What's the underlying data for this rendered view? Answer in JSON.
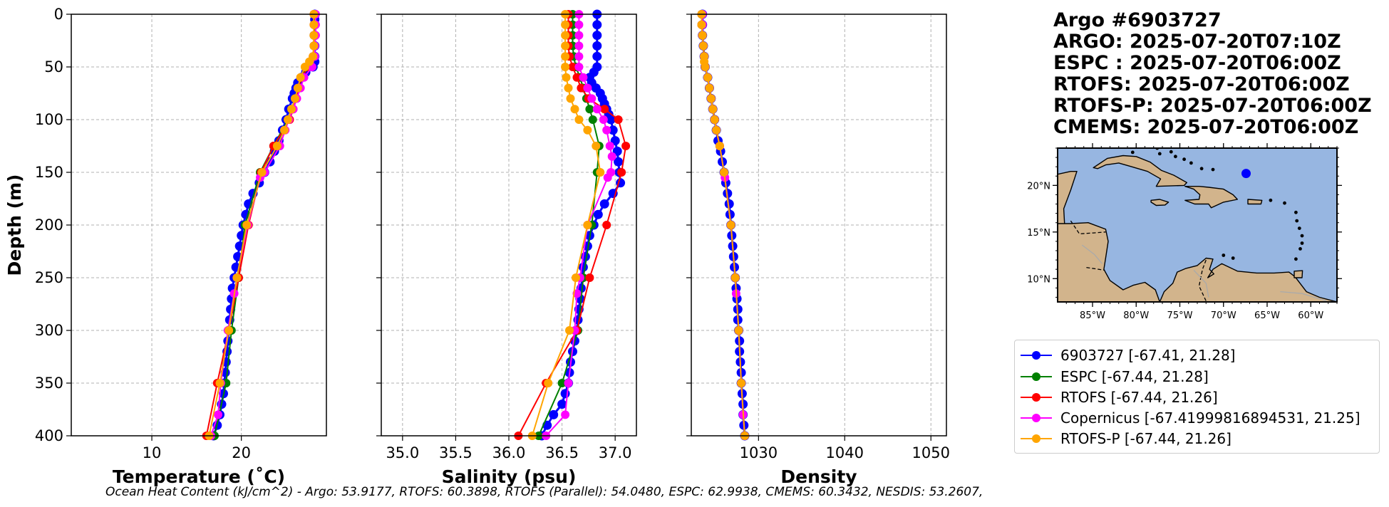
{
  "header": {
    "lines": [
      "Argo #6903727",
      "ARGO: 2025-07-20T07:10Z",
      "ESPC : 2025-07-20T06:00Z",
      "RTOFS: 2025-07-20T06:00Z",
      "RTOFS-P: 2025-07-20T06:00Z",
      "CMEMS: 2025-07-20T06:00Z"
    ]
  },
  "footer": {
    "text": "Ocean Heat Content (kJ/cm^2) - Argo: 53.9177,  RTOFS: 60.3898,  RTOFS (Parallel): 54.0480,  ESPC: 62.9938,  CMEMS: 60.3432,  NESDIS: 53.2607,"
  },
  "colors": {
    "argo": "#0000ff",
    "espc": "#008000",
    "rtofs": "#ff0000",
    "copernicus": "#ff00ff",
    "rtofsp": "#ffa500",
    "ocean": "#97b6e1",
    "land": "#d2b48c",
    "grid": "#b0b0b0"
  },
  "legend": [
    {
      "key": "argo",
      "label": "6903727 [-67.41, 21.28]"
    },
    {
      "key": "espc",
      "label": "ESPC [-67.44, 21.28]"
    },
    {
      "key": "rtofs",
      "label": "RTOFS [-67.44, 21.26]"
    },
    {
      "key": "copernicus",
      "label": "Copernicus [-67.41999816894531, 21.25]"
    },
    {
      "key": "rtofsp",
      "label": "RTOFS-P [-67.44, 21.26]"
    }
  ],
  "map": {
    "lon_range": [
      -89,
      -57
    ],
    "lat_range": [
      7.5,
      24
    ],
    "xticks": [
      -85,
      -80,
      -75,
      -70,
      -65,
      -60
    ],
    "xtick_labels": [
      "85°W",
      "80°W",
      "75°W",
      "70°W",
      "65°W",
      "60°W"
    ],
    "yticks": [
      10,
      15,
      20
    ],
    "ytick_labels": [
      "10°N",
      "15°N",
      "20°N"
    ],
    "float_position": {
      "lon": -67.41,
      "lat": 21.28
    }
  },
  "chart_data": [
    {
      "type": "line",
      "id": "temperature",
      "xlabel": "Temperature (˚C)",
      "ylabel": "Depth (m)",
      "xlim": [
        1,
        29.5
      ],
      "ylim": [
        400,
        0
      ],
      "xticks": [
        10,
        20
      ],
      "yticks": [
        0,
        50,
        100,
        150,
        200,
        250,
        300,
        350,
        400
      ],
      "series": [
        {
          "name": "argo",
          "dense": true,
          "depth": [
            0,
            5,
            10,
            20,
            30,
            40,
            45,
            50,
            55,
            60,
            65,
            70,
            75,
            80,
            90,
            100,
            110,
            120,
            130,
            140,
            150,
            160,
            170,
            180,
            190,
            200,
            210,
            220,
            230,
            240,
            250,
            260,
            270,
            280,
            290,
            300,
            310,
            320,
            330,
            340,
            350,
            360,
            370,
            380,
            390,
            400
          ],
          "values": [
            28.2,
            28.2,
            28.2,
            28.2,
            28.2,
            28.2,
            28.2,
            28.0,
            27.2,
            26.7,
            26.3,
            26.1,
            25.9,
            25.7,
            25.3,
            25.0,
            24.6,
            24.2,
            23.7,
            23.2,
            22.6,
            22.0,
            21.3,
            20.8,
            20.5,
            20.2,
            20.0,
            19.8,
            19.6,
            19.4,
            19.2,
            19.0,
            18.9,
            18.8,
            18.7,
            18.6,
            18.5,
            18.4,
            18.3,
            18.2,
            18.1,
            18.0,
            17.8,
            17.6,
            17.3,
            16.9
          ]
        },
        {
          "name": "espc",
          "depth": [
            0,
            10,
            20,
            30,
            40,
            50,
            60,
            70,
            80,
            90,
            100,
            125,
            150,
            200,
            250,
            300,
            350,
            400
          ],
          "values": [
            28.2,
            28.2,
            28.1,
            28.1,
            28.1,
            27.4,
            26.7,
            26.4,
            26.0,
            25.6,
            25.2,
            23.6,
            22.1,
            20.4,
            19.7,
            18.9,
            18.3,
            17.0
          ]
        },
        {
          "name": "rtofs",
          "depth": [
            0,
            10,
            20,
            30,
            40,
            50,
            60,
            70,
            80,
            90,
            100,
            125,
            150,
            200,
            250,
            300,
            350,
            400
          ],
          "values": [
            28.1,
            28.1,
            28.1,
            28.1,
            28.0,
            27.5,
            26.7,
            26.4,
            26.1,
            25.8,
            25.4,
            23.6,
            22.2,
            20.8,
            19.7,
            18.6,
            17.3,
            16.1
          ]
        },
        {
          "name": "copernicus",
          "depth": [
            0,
            10,
            20,
            30,
            40,
            50,
            60,
            70,
            80,
            90,
            100,
            110,
            125,
            150,
            155,
            200,
            250,
            265,
            300,
            350,
            380,
            400
          ],
          "values": [
            28.3,
            28.3,
            28.3,
            28.2,
            28.2,
            27.9,
            27.0,
            26.6,
            26.2,
            25.8,
            25.3,
            24.9,
            24.3,
            22.6,
            22.1,
            20.7,
            19.5,
            19.2,
            18.5,
            17.7,
            17.4,
            16.6
          ]
        },
        {
          "name": "rtofsp",
          "depth": [
            0,
            10,
            20,
            30,
            40,
            45,
            50,
            60,
            70,
            80,
            90,
            100,
            110,
            125,
            150,
            200,
            250,
            300,
            350,
            400
          ],
          "values": [
            28.1,
            28.1,
            28.1,
            28.1,
            28.0,
            27.6,
            27.1,
            26.6,
            26.3,
            26.0,
            25.6,
            25.2,
            24.8,
            24.0,
            22.3,
            20.6,
            19.5,
            18.6,
            17.6,
            16.4
          ]
        }
      ]
    },
    {
      "type": "line",
      "id": "salinity",
      "xlabel": "Salinity (psu)",
      "xlim": [
        34.8,
        37.2
      ],
      "ylim": [
        400,
        0
      ],
      "xticks": [
        35.0,
        35.5,
        36.0,
        36.5,
        37.0
      ],
      "xtick_labels": [
        "35.0",
        "35.5",
        "36.0",
        "36.5",
        "37.0"
      ],
      "yticks": [
        0,
        50,
        100,
        150,
        200,
        250,
        300,
        350,
        400
      ],
      "series": [
        {
          "name": "argo",
          "dense": true,
          "depth": [
            0,
            10,
            20,
            30,
            40,
            50,
            55,
            60,
            65,
            70,
            75,
            80,
            85,
            90,
            95,
            100,
            110,
            120,
            130,
            140,
            150,
            160,
            170,
            180,
            190,
            200,
            210,
            220,
            230,
            240,
            250,
            260,
            270,
            280,
            290,
            300,
            310,
            320,
            330,
            340,
            350,
            360,
            370,
            380,
            390,
            400
          ],
          "values": [
            36.83,
            36.83,
            36.83,
            36.83,
            36.83,
            36.83,
            36.8,
            36.76,
            36.78,
            36.82,
            36.86,
            36.88,
            36.9,
            36.92,
            36.94,
            36.96,
            36.98,
            37.0,
            37.02,
            37.03,
            37.04,
            37.05,
            36.98,
            36.9,
            36.84,
            36.8,
            36.76,
            36.74,
            36.72,
            36.7,
            36.69,
            36.68,
            36.67,
            36.66,
            36.65,
            36.64,
            36.62,
            36.6,
            36.58,
            36.57,
            36.56,
            36.53,
            36.5,
            36.42,
            36.36,
            36.31
          ]
        },
        {
          "name": "espc",
          "depth": [
            0,
            10,
            20,
            30,
            40,
            50,
            60,
            70,
            80,
            90,
            100,
            125,
            150,
            200,
            250,
            300,
            350,
            400
          ],
          "values": [
            36.6,
            36.6,
            36.6,
            36.6,
            36.61,
            36.63,
            36.67,
            36.7,
            36.73,
            36.76,
            36.79,
            36.85,
            36.83,
            36.78,
            36.7,
            36.65,
            36.5,
            36.28
          ]
        },
        {
          "name": "rtofs",
          "depth": [
            0,
            10,
            20,
            30,
            40,
            50,
            60,
            70,
            80,
            90,
            100,
            125,
            150,
            200,
            250,
            300,
            350,
            400
          ],
          "values": [
            36.56,
            36.56,
            36.56,
            36.56,
            36.57,
            36.6,
            36.64,
            36.68,
            36.75,
            36.9,
            37.03,
            37.1,
            37.06,
            36.92,
            36.76,
            36.64,
            36.35,
            36.09
          ]
        },
        {
          "name": "copernicus",
          "depth": [
            0,
            10,
            20,
            30,
            40,
            50,
            60,
            70,
            80,
            90,
            100,
            110,
            125,
            135,
            150,
            155,
            200,
            250,
            265,
            300,
            350,
            380,
            400
          ],
          "values": [
            36.66,
            36.66,
            36.66,
            36.66,
            36.66,
            36.66,
            36.7,
            36.74,
            36.78,
            36.83,
            36.89,
            36.92,
            36.95,
            36.97,
            36.96,
            36.93,
            36.74,
            36.67,
            36.64,
            36.62,
            36.56,
            36.53,
            36.35
          ]
        },
        {
          "name": "rtofsp",
          "depth": [
            0,
            10,
            20,
            30,
            40,
            50,
            60,
            70,
            80,
            90,
            100,
            110,
            125,
            150,
            200,
            250,
            300,
            350,
            400
          ],
          "values": [
            36.53,
            36.53,
            36.53,
            36.53,
            36.53,
            36.53,
            36.54,
            36.56,
            36.58,
            36.62,
            36.66,
            36.74,
            36.82,
            36.86,
            36.74,
            36.63,
            36.57,
            36.37,
            36.22
          ]
        }
      ]
    },
    {
      "type": "line",
      "id": "density",
      "xlabel": "Density",
      "xlim": [
        1022.2,
        1051.8
      ],
      "ylim": [
        400,
        0
      ],
      "xticks": [
        1030,
        1040,
        1050
      ],
      "yticks": [
        0,
        50,
        100,
        150,
        200,
        250,
        300,
        350,
        400
      ],
      "series": [
        {
          "name": "argo",
          "dense": true,
          "depth": [
            0,
            10,
            20,
            30,
            40,
            50,
            60,
            70,
            80,
            90,
            100,
            110,
            120,
            130,
            140,
            150,
            160,
            170,
            180,
            190,
            200,
            210,
            220,
            230,
            240,
            250,
            260,
            270,
            280,
            290,
            300,
            310,
            320,
            330,
            340,
            350,
            360,
            370,
            380,
            390,
            400
          ],
          "values": [
            1023.5,
            1023.5,
            1023.5,
            1023.6,
            1023.7,
            1023.8,
            1024.1,
            1024.3,
            1024.5,
            1024.7,
            1024.9,
            1025.1,
            1025.3,
            1025.6,
            1025.8,
            1026.0,
            1026.2,
            1026.4,
            1026.6,
            1026.7,
            1026.8,
            1026.9,
            1027.0,
            1027.1,
            1027.2,
            1027.3,
            1027.4,
            1027.5,
            1027.6,
            1027.6,
            1027.7,
            1027.8,
            1027.8,
            1027.9,
            1028.0,
            1028.0,
            1028.1,
            1028.2,
            1028.2,
            1028.3,
            1028.4
          ]
        },
        {
          "name": "espc",
          "depth": [
            0,
            10,
            20,
            30,
            40,
            50,
            60,
            70,
            80,
            90,
            100,
            125,
            150,
            200,
            250,
            300,
            350,
            400
          ],
          "values": [
            1023.4,
            1023.4,
            1023.5,
            1023.6,
            1023.7,
            1023.8,
            1024.1,
            1024.3,
            1024.5,
            1024.7,
            1024.9,
            1025.5,
            1026.0,
            1026.8,
            1027.3,
            1027.7,
            1028.0,
            1028.4
          ]
        },
        {
          "name": "rtofs",
          "depth": [
            0,
            10,
            20,
            30,
            40,
            50,
            60,
            70,
            80,
            90,
            100,
            125,
            150,
            200,
            250,
            300,
            350,
            400
          ],
          "values": [
            1023.4,
            1023.4,
            1023.5,
            1023.6,
            1023.7,
            1023.8,
            1024.1,
            1024.3,
            1024.5,
            1024.7,
            1024.9,
            1025.5,
            1026.0,
            1026.8,
            1027.3,
            1027.7,
            1028.0,
            1028.4
          ]
        },
        {
          "name": "copernicus",
          "depth": [
            0,
            10,
            20,
            30,
            40,
            50,
            60,
            70,
            80,
            90,
            100,
            110,
            125,
            150,
            155,
            200,
            250,
            265,
            300,
            350,
            380,
            400
          ],
          "values": [
            1023.5,
            1023.5,
            1023.5,
            1023.6,
            1023.7,
            1023.8,
            1024.1,
            1024.3,
            1024.5,
            1024.7,
            1024.9,
            1025.1,
            1025.5,
            1026.0,
            1026.1,
            1026.8,
            1027.3,
            1027.4,
            1027.7,
            1028.0,
            1028.2,
            1028.4
          ]
        },
        {
          "name": "rtofsp",
          "depth": [
            0,
            10,
            20,
            30,
            40,
            45,
            50,
            60,
            70,
            80,
            90,
            100,
            110,
            125,
            150,
            200,
            250,
            300,
            350,
            400
          ],
          "values": [
            1023.4,
            1023.4,
            1023.5,
            1023.6,
            1023.7,
            1023.7,
            1023.8,
            1024.1,
            1024.3,
            1024.5,
            1024.7,
            1024.9,
            1025.1,
            1025.5,
            1026.0,
            1026.8,
            1027.3,
            1027.7,
            1028.0,
            1028.4
          ]
        }
      ]
    }
  ]
}
